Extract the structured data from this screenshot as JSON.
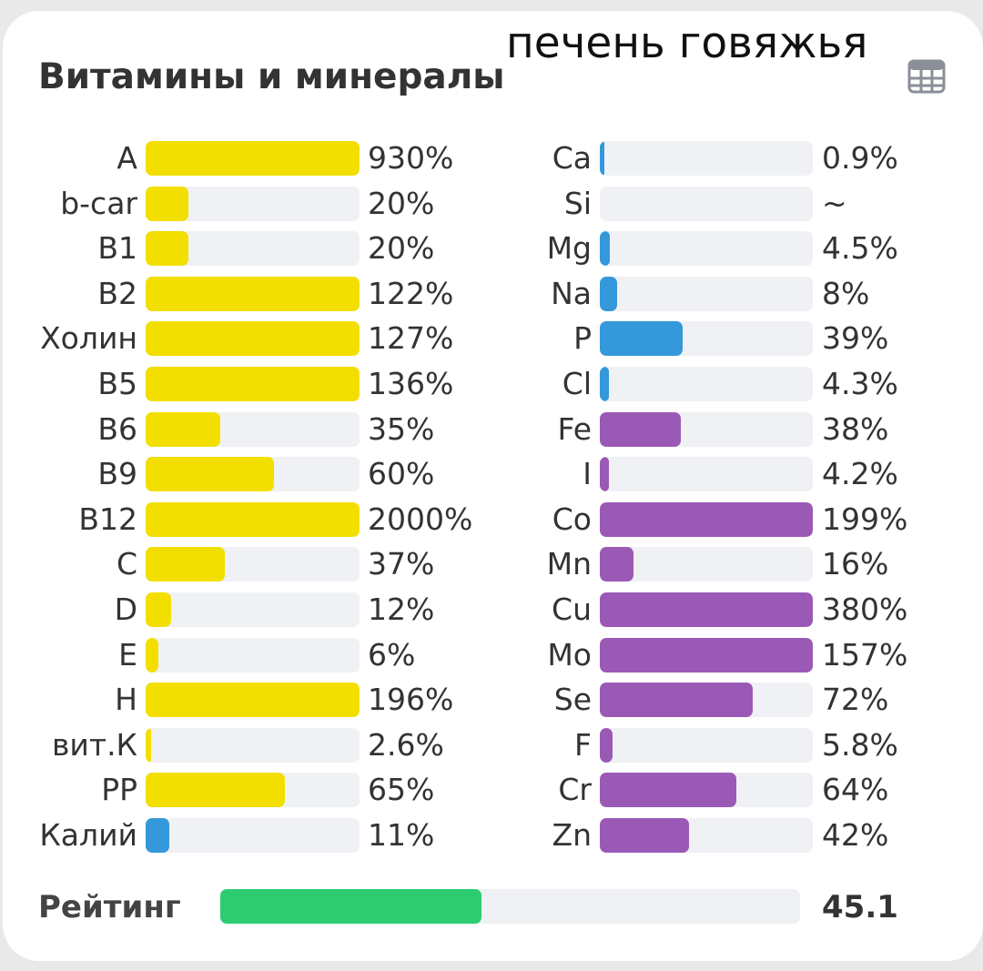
{
  "overlay_title": "печень говяжья",
  "header": {
    "title": "Витамины и минералы"
  },
  "icons": {
    "table": "table-icon"
  },
  "colors": {
    "vitamin": "#f2df00",
    "macro": "#3498db",
    "trace": "#9b59b6",
    "potassium": "#3498db",
    "rating": "#2ecc71",
    "track": "#eff1f4"
  },
  "chart_data": {
    "type": "bar",
    "title": "Витамины и минералы",
    "unit": "% of daily value",
    "bar_cap_percent": 100,
    "left_column": [
      {
        "label": "A",
        "value_text": "930%",
        "value": 930,
        "color": "vitamin"
      },
      {
        "label": "b-car",
        "value_text": "20%",
        "value": 20,
        "color": "vitamin"
      },
      {
        "label": "B1",
        "value_text": "20%",
        "value": 20,
        "color": "vitamin"
      },
      {
        "label": "B2",
        "value_text": "122%",
        "value": 122,
        "color": "vitamin"
      },
      {
        "label": "Холин",
        "value_text": "127%",
        "value": 127,
        "color": "vitamin"
      },
      {
        "label": "B5",
        "value_text": "136%",
        "value": 136,
        "color": "vitamin"
      },
      {
        "label": "B6",
        "value_text": "35%",
        "value": 35,
        "color": "vitamin"
      },
      {
        "label": "B9",
        "value_text": "60%",
        "value": 60,
        "color": "vitamin"
      },
      {
        "label": "B12",
        "value_text": "2000%",
        "value": 2000,
        "color": "vitamin"
      },
      {
        "label": "C",
        "value_text": "37%",
        "value": 37,
        "color": "vitamin"
      },
      {
        "label": "D",
        "value_text": "12%",
        "value": 12,
        "color": "vitamin"
      },
      {
        "label": "E",
        "value_text": "6%",
        "value": 6,
        "color": "vitamin"
      },
      {
        "label": "H",
        "value_text": "196%",
        "value": 196,
        "color": "vitamin"
      },
      {
        "label": "вит.К",
        "value_text": "2.6%",
        "value": 2.6,
        "color": "vitamin"
      },
      {
        "label": "PP",
        "value_text": "65%",
        "value": 65,
        "color": "vitamin"
      },
      {
        "label": "Калий",
        "value_text": "11%",
        "value": 11,
        "color": "potassium"
      }
    ],
    "right_column": [
      {
        "label": "Ca",
        "value_text": "0.9%",
        "value": 0.9,
        "color": "macro"
      },
      {
        "label": "Si",
        "value_text": "~",
        "value": 0,
        "color": "macro"
      },
      {
        "label": "Mg",
        "value_text": "4.5%",
        "value": 4.5,
        "color": "macro"
      },
      {
        "label": "Na",
        "value_text": "8%",
        "value": 8,
        "color": "macro"
      },
      {
        "label": "P",
        "value_text": "39%",
        "value": 39,
        "color": "macro"
      },
      {
        "label": "Cl",
        "value_text": "4.3%",
        "value": 4.3,
        "color": "macro"
      },
      {
        "label": "Fe",
        "value_text": "38%",
        "value": 38,
        "color": "trace"
      },
      {
        "label": "I",
        "value_text": "4.2%",
        "value": 4.2,
        "color": "trace"
      },
      {
        "label": "Co",
        "value_text": "199%",
        "value": 199,
        "color": "trace"
      },
      {
        "label": "Mn",
        "value_text": "16%",
        "value": 16,
        "color": "trace"
      },
      {
        "label": "Cu",
        "value_text": "380%",
        "value": 380,
        "color": "trace"
      },
      {
        "label": "Mo",
        "value_text": "157%",
        "value": 157,
        "color": "trace"
      },
      {
        "label": "Se",
        "value_text": "72%",
        "value": 72,
        "color": "trace"
      },
      {
        "label": "F",
        "value_text": "5.8%",
        "value": 5.8,
        "color": "trace"
      },
      {
        "label": "Cr",
        "value_text": "64%",
        "value": 64,
        "color": "trace"
      },
      {
        "label": "Zn",
        "value_text": "42%",
        "value": 42,
        "color": "trace"
      }
    ]
  },
  "rating": {
    "label": "Рейтинг",
    "value_text": "45.1",
    "value": 45.1,
    "max": 100
  }
}
